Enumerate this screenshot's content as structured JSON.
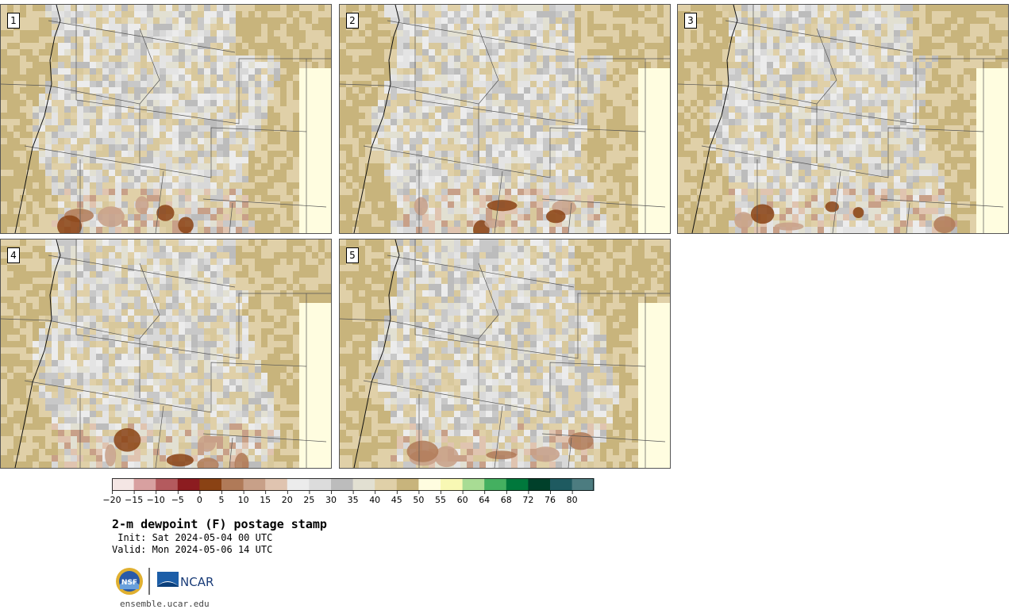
{
  "panels": [
    {
      "label": "1"
    },
    {
      "label": "2"
    },
    {
      "label": "3"
    },
    {
      "label": "4"
    },
    {
      "label": "5"
    }
  ],
  "legend": {
    "ticks": [
      "−20",
      "−15",
      "−10",
      "−5",
      "0",
      "5",
      "10",
      "15",
      "20",
      "25",
      "30",
      "35",
      "40",
      "45",
      "50",
      "55",
      "60",
      "64",
      "68",
      "72",
      "76",
      "80"
    ],
    "colors": [
      "#f4e6e4",
      "#d8a0a0",
      "#b45a5e",
      "#8c1c20",
      "#8a4214",
      "#b07a58",
      "#c8a088",
      "#e0c4b0",
      "#ececec",
      "#dcdcdc",
      "#bcbcbc",
      "#e2e0d2",
      "#e0d0a8",
      "#c8b47c",
      "#fffde0",
      "#f8f8b4",
      "#a8dc94",
      "#44b060",
      "#00783c",
      "#00402a",
      "#1e5a60",
      "#4c7c80"
    ]
  },
  "title": "2-m dewpoint (F) postage stamp",
  "init": " Init: Sat 2024-05-04 00 UTC",
  "valid": "Valid: Mon 2024-05-06 14 UTC",
  "logos": {
    "nsf": "NSF",
    "ncar": "NCAR"
  },
  "footer": "ensemble.ucar.edu"
}
